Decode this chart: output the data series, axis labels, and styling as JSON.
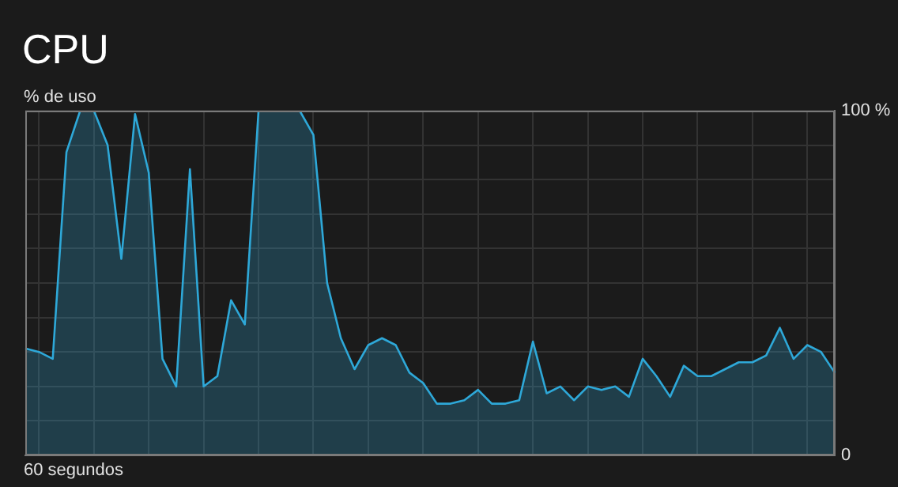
{
  "chart_data": {
    "type": "area",
    "title": "CPU",
    "ylabel": "% de uso",
    "xlabel": "60 segundos",
    "categories": [
      null,
      null,
      null,
      null,
      null,
      null,
      null,
      null,
      null,
      null,
      null,
      null,
      null,
      null,
      null,
      null,
      null,
      null,
      null,
      null,
      null,
      null,
      null,
      null,
      null,
      null,
      null,
      null,
      null,
      null,
      null,
      null,
      null,
      null,
      null,
      null,
      null,
      null,
      null,
      null,
      null,
      null,
      null,
      null,
      null,
      null,
      null,
      null,
      null,
      null,
      null,
      null,
      null,
      null,
      null,
      null,
      null,
      null,
      null,
      null
    ],
    "series": [
      {
        "color": "#2ea8d8",
        "values": [
          31,
          30,
          28,
          88,
          100,
          100,
          90,
          57,
          99,
          82,
          28,
          20,
          83,
          20,
          23,
          45,
          38,
          100,
          100,
          100,
          100,
          93,
          50,
          34,
          25,
          32,
          34,
          32,
          24,
          21,
          15,
          15,
          16,
          19,
          15,
          15,
          16,
          33,
          18,
          20,
          16,
          20,
          19,
          20,
          17,
          28,
          23,
          17,
          26,
          23,
          23,
          25,
          27,
          27,
          29,
          37,
          28,
          32,
          30,
          24
        ]
      }
    ],
    "ylim": [
      0,
      100
    ],
    "yticks": [
      0,
      {
        "value": 10,
        "label": null
      },
      {
        "value": 20,
        "label": null
      },
      {
        "value": 30,
        "label": null
      },
      {
        "value": 40,
        "label": null
      },
      {
        "value": 50,
        "label": null
      },
      {
        "value": 60,
        "label": null
      },
      {
        "value": 70,
        "label": null
      },
      {
        "value": 80,
        "label": null
      },
      {
        "value": 90,
        "label": null
      },
      {
        "value": 100,
        "label": "100 %"
      }
    ],
    "grid": true
  }
}
